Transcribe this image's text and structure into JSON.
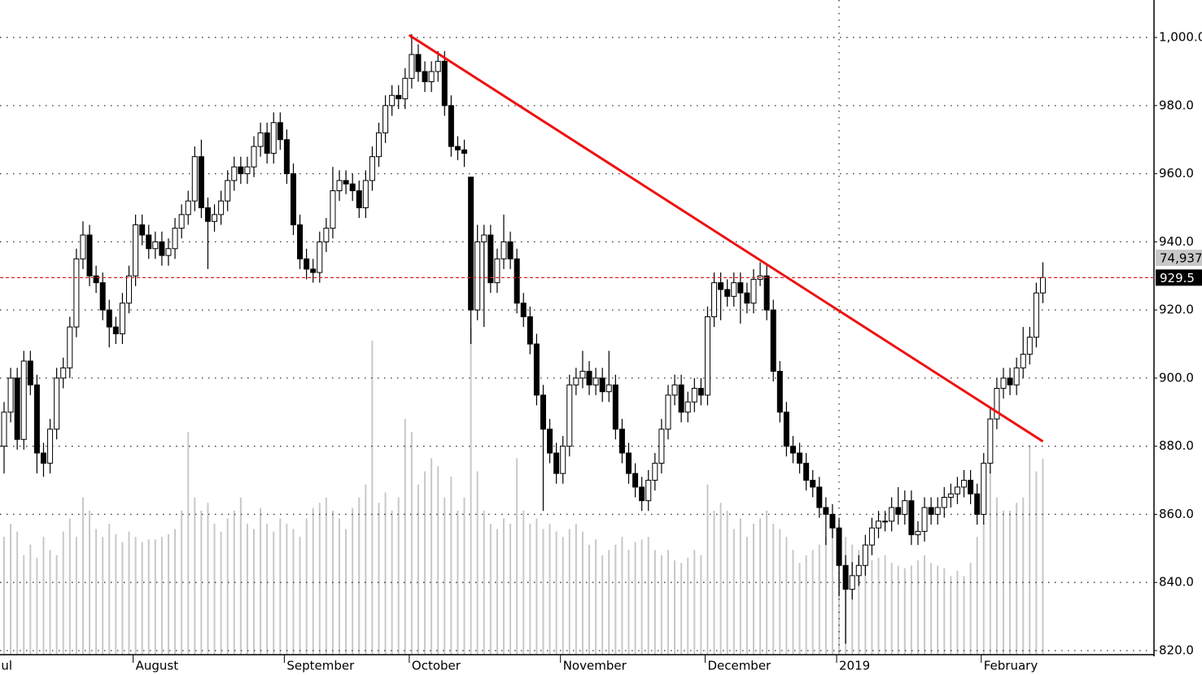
{
  "chart_data": {
    "type": "candlestick",
    "xlim": [
      -0.62,
      174.9
    ],
    "ylim": [
      818.8,
      1011
    ],
    "vlim": [
      0,
      250000
    ],
    "yticks": [
      {
        "value": 820,
        "label": "820.0"
      },
      {
        "value": 840,
        "label": "840.0"
      },
      {
        "value": 860,
        "label": "860.0"
      },
      {
        "value": 880,
        "label": "880.0"
      },
      {
        "value": 900,
        "label": "900.0"
      },
      {
        "value": 920,
        "label": "920.0"
      },
      {
        "value": 940,
        "label": "940.0"
      },
      {
        "value": 960,
        "label": "960.0"
      },
      {
        "value": 980,
        "label": "980.0"
      },
      {
        "value": 1000,
        "label": "1,000.0"
      }
    ],
    "xticks": [
      {
        "value": -1,
        "label": "Jul"
      },
      {
        "value": 20,
        "label": "August"
      },
      {
        "value": 43,
        "label": "September"
      },
      {
        "value": 62,
        "label": "October"
      },
      {
        "value": 85,
        "label": "November"
      },
      {
        "value": 107,
        "label": "December"
      },
      {
        "value": 127,
        "label": "2019"
      },
      {
        "value": 149,
        "label": "February"
      }
    ],
    "xgrid_tick": 6,
    "grid": true,
    "up_color": "#ffffff",
    "down_color": "#000000",
    "volume_color": "#c8c8c8",
    "trend_color": "#ee1111",
    "price_line": 929.5,
    "price_line_color": "#dd2222",
    "last_volume_label": "74,937",
    "trendline": {
      "x": [
        61.6,
        158
      ],
      "y": [
        1000.7,
        881.4
      ]
    },
    "candles": [
      [
        880,
        893,
        872,
        890
      ],
      [
        890,
        903,
        887,
        900
      ],
      [
        900,
        903,
        879,
        882
      ],
      [
        882,
        908,
        879,
        905
      ],
      [
        905,
        908,
        895,
        898
      ],
      [
        898,
        901,
        872,
        878
      ],
      [
        878,
        881,
        871,
        875
      ],
      [
        875,
        888,
        872,
        885
      ],
      [
        885,
        903,
        882,
        900
      ],
      [
        900,
        906,
        897,
        903
      ],
      [
        903,
        918,
        900,
        915
      ],
      [
        915,
        938,
        912,
        935
      ],
      [
        935,
        946,
        932,
        942
      ],
      [
        942,
        945,
        927,
        930
      ],
      [
        930,
        933,
        925,
        928
      ],
      [
        928,
        931,
        917,
        920
      ],
      [
        920,
        923,
        909,
        915
      ],
      [
        915,
        918,
        910,
        913
      ],
      [
        913,
        925,
        910,
        922
      ],
      [
        922,
        933,
        919,
        930
      ],
      [
        930,
        948,
        927,
        945
      ],
      [
        945,
        948,
        939,
        942
      ],
      [
        942,
        945,
        935,
        938
      ],
      [
        938,
        943,
        935,
        940
      ],
      [
        940,
        943,
        933,
        936
      ],
      [
        936,
        941,
        933,
        938
      ],
      [
        938,
        947,
        935,
        944
      ],
      [
        944,
        951,
        941,
        948
      ],
      [
        948,
        955,
        945,
        952
      ],
      [
        952,
        968,
        949,
        965
      ],
      [
        965,
        970,
        947,
        950
      ],
      [
        950,
        953,
        932,
        946
      ],
      [
        946,
        951,
        943,
        948
      ],
      [
        948,
        955,
        945,
        952
      ],
      [
        952,
        961,
        949,
        958
      ],
      [
        958,
        965,
        955,
        962
      ],
      [
        962,
        965,
        957,
        960
      ],
      [
        960,
        965,
        957,
        962
      ],
      [
        962,
        971,
        959,
        968
      ],
      [
        968,
        975,
        965,
        972
      ],
      [
        972,
        975,
        963,
        966
      ],
      [
        966,
        978,
        963,
        975
      ],
      [
        975,
        978,
        967,
        970
      ],
      [
        970,
        973,
        957,
        960
      ],
      [
        960,
        963,
        942,
        945
      ],
      [
        945,
        948,
        932,
        935
      ],
      [
        935,
        938,
        929,
        932
      ],
      [
        932,
        935,
        928,
        931
      ],
      [
        931,
        943,
        928,
        940
      ],
      [
        940,
        947,
        937,
        944
      ],
      [
        944,
        962,
        941,
        955
      ],
      [
        955,
        961,
        952,
        958
      ],
      [
        958,
        961,
        954,
        957
      ],
      [
        957,
        960,
        952,
        955
      ],
      [
        955,
        958,
        947,
        950
      ],
      [
        950,
        961,
        947,
        958
      ],
      [
        958,
        968,
        955,
        965
      ],
      [
        965,
        975,
        962,
        972
      ],
      [
        972,
        983,
        969,
        980
      ],
      [
        980,
        986,
        977,
        983
      ],
      [
        983,
        986,
        979,
        982
      ],
      [
        982,
        991,
        979,
        988
      ],
      [
        988,
        1001,
        985,
        995
      ],
      [
        995,
        998,
        987,
        990
      ],
      [
        990,
        993,
        984,
        987
      ],
      [
        987,
        993,
        984,
        990
      ],
      [
        990,
        996,
        987,
        993
      ],
      [
        993,
        996,
        977,
        980
      ],
      [
        980,
        983,
        965,
        968
      ],
      [
        968,
        971,
        964,
        967
      ],
      [
        967,
        970,
        962,
        966
      ],
      [
        959,
        959,
        910,
        920
      ],
      [
        920,
        945,
        917,
        940
      ],
      [
        940,
        945,
        915,
        942
      ],
      [
        942,
        945,
        925,
        928
      ],
      [
        928,
        938,
        925,
        935
      ],
      [
        935,
        948,
        932,
        940
      ],
      [
        940,
        943,
        932,
        935
      ],
      [
        935,
        938,
        919,
        922
      ],
      [
        922,
        925,
        915,
        918
      ],
      [
        918,
        921,
        907,
        910
      ],
      [
        910,
        913,
        892,
        895
      ],
      [
        895,
        898,
        861,
        885
      ],
      [
        885,
        888,
        875,
        878
      ],
      [
        878,
        881,
        869,
        872
      ],
      [
        872,
        883,
        869,
        880
      ],
      [
        880,
        901,
        877,
        898
      ],
      [
        898,
        903,
        895,
        900
      ],
      [
        900,
        908,
        897,
        902
      ],
      [
        902,
        905,
        895,
        898
      ],
      [
        898,
        903,
        895,
        900
      ],
      [
        900,
        903,
        893,
        896
      ],
      [
        896,
        908,
        893,
        898
      ],
      [
        898,
        901,
        882,
        885
      ],
      [
        885,
        888,
        875,
        878
      ],
      [
        878,
        881,
        869,
        872
      ],
      [
        872,
        875,
        865,
        868
      ],
      [
        868,
        871,
        861,
        864
      ],
      [
        864,
        873,
        861,
        870
      ],
      [
        870,
        878,
        867,
        875
      ],
      [
        875,
        888,
        872,
        885
      ],
      [
        885,
        898,
        882,
        895
      ],
      [
        895,
        901,
        892,
        898
      ],
      [
        898,
        901,
        887,
        890
      ],
      [
        890,
        896,
        887,
        893
      ],
      [
        893,
        900,
        890,
        897
      ],
      [
        897,
        900,
        892,
        895
      ],
      [
        895,
        921,
        892,
        918
      ],
      [
        918,
        931,
        915,
        928
      ],
      [
        928,
        931,
        917,
        926
      ],
      [
        926,
        929,
        921,
        924
      ],
      [
        924,
        931,
        921,
        928
      ],
      [
        928,
        931,
        916,
        925
      ],
      [
        925,
        928,
        919,
        922
      ],
      [
        922,
        932,
        919,
        929
      ],
      [
        929,
        934,
        927,
        930
      ],
      [
        930,
        933,
        917,
        920
      ],
      [
        920,
        923,
        899,
        902
      ],
      [
        902,
        905,
        887,
        890
      ],
      [
        890,
        893,
        877,
        880
      ],
      [
        880,
        883,
        875,
        878
      ],
      [
        878,
        881,
        872,
        875
      ],
      [
        875,
        878,
        867,
        870
      ],
      [
        870,
        873,
        865,
        868
      ],
      [
        868,
        871,
        859,
        862
      ],
      [
        862,
        865,
        851,
        860
      ],
      [
        860,
        863,
        853,
        856
      ],
      [
        856,
        859,
        836,
        845
      ],
      [
        845,
        848,
        822,
        838
      ],
      [
        838,
        846,
        835,
        842
      ],
      [
        842,
        848,
        839,
        845
      ],
      [
        845,
        854,
        842,
        851
      ],
      [
        851,
        859,
        848,
        856
      ],
      [
        856,
        861,
        853,
        858
      ],
      [
        858,
        861,
        855,
        858
      ],
      [
        858,
        865,
        855,
        862
      ],
      [
        862,
        868,
        857,
        860
      ],
      [
        860,
        867,
        857,
        864
      ],
      [
        864,
        867,
        851,
        854
      ],
      [
        854,
        858,
        851,
        855
      ],
      [
        855,
        865,
        852,
        862
      ],
      [
        862,
        865,
        857,
        860
      ],
      [
        860,
        865,
        857,
        862
      ],
      [
        862,
        868,
        859,
        865
      ],
      [
        865,
        869,
        862,
        866
      ],
      [
        866,
        871,
        863,
        868
      ],
      [
        868,
        873,
        865,
        870
      ],
      [
        870,
        873,
        863,
        866
      ],
      [
        866,
        869,
        857,
        860
      ],
      [
        860,
        878,
        857,
        875
      ],
      [
        875,
        891,
        872,
        888
      ],
      [
        888,
        900,
        885,
        897
      ],
      [
        897,
        903,
        894,
        900
      ],
      [
        900,
        903,
        895,
        898
      ],
      [
        898,
        906,
        895,
        903
      ],
      [
        903,
        915,
        900,
        907
      ],
      [
        907,
        915,
        904,
        912
      ],
      [
        912,
        928,
        909,
        925
      ],
      [
        925,
        934,
        922,
        929.5
      ]
    ],
    "volumes": [
      45000,
      50000,
      47000,
      38000,
      42000,
      37000,
      45000,
      40000,
      38000,
      47000,
      52000,
      45000,
      60000,
      55000,
      48000,
      45000,
      50000,
      46000,
      43000,
      47000,
      45000,
      43000,
      44000,
      44000,
      45000,
      46000,
      48000,
      55000,
      85000,
      60000,
      55000,
      58000,
      50000,
      47000,
      52000,
      55000,
      60000,
      50000,
      48000,
      56000,
      50000,
      47000,
      52000,
      50000,
      48000,
      45000,
      52000,
      56000,
      58000,
      60000,
      55000,
      52000,
      48000,
      56000,
      60000,
      65000,
      120000,
      58000,
      62000,
      55000,
      60000,
      90000,
      85000,
      65000,
      70000,
      75000,
      72000,
      60000,
      68000,
      55000,
      60000,
      125000,
      70000,
      55000,
      50000,
      48000,
      52000,
      50000,
      75000,
      55000,
      50000,
      52000,
      48000,
      50000,
      47000,
      45000,
      48000,
      50000,
      47000,
      42000,
      44000,
      38000,
      40000,
      42000,
      45000,
      40000,
      43000,
      44000,
      45000,
      40000,
      38000,
      40000,
      36000,
      35000,
      37000,
      40000,
      38000,
      65000,
      55000,
      58000,
      55000,
      48000,
      52000,
      45000,
      50000,
      52000,
      55000,
      50000,
      48000,
      45000,
      40000,
      35000,
      38000,
      40000,
      42000,
      45000,
      48000,
      50000,
      45000,
      42000,
      40000,
      38000,
      36000,
      37000,
      38000,
      35000,
      34000,
      33000,
      34000,
      36000,
      38000,
      35000,
      34000,
      33000,
      30000,
      32000,
      30000,
      35000,
      45000,
      50000,
      70000,
      60000,
      55000,
      55000,
      58000,
      60000,
      80000,
      70000,
      74937
    ]
  }
}
